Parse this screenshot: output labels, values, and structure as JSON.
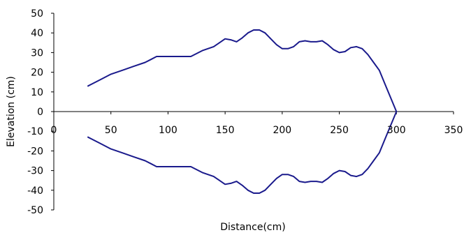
{
  "chart_data": {
    "type": "line",
    "title": "",
    "xlabel": "Distance(cm)",
    "ylabel": "Elevation (cm)",
    "xlim": [
      0,
      350
    ],
    "ylim": [
      -50,
      50
    ],
    "xticks": [
      0,
      50,
      100,
      150,
      200,
      250,
      300,
      350
    ],
    "yticks": [
      50,
      40,
      30,
      20,
      10,
      0,
      -10,
      -20,
      -30,
      -40,
      -50
    ],
    "grid": false,
    "legend": "none",
    "series": [
      {
        "color": "#1a1a8c",
        "x": [
          30,
          40,
          50,
          60,
          70,
          80,
          85,
          90,
          100,
          110,
          120,
          130,
          140,
          145,
          150,
          155,
          160,
          165,
          170,
          175,
          180,
          185,
          190,
          195,
          200,
          205,
          210,
          215,
          220,
          225,
          230,
          235,
          240,
          245,
          250,
          255,
          260,
          265,
          270,
          275,
          280,
          285,
          290,
          295,
          300
        ],
        "y": [
          13,
          16,
          19,
          21,
          23,
          25,
          26.5,
          28,
          28,
          28,
          28,
          31,
          33,
          35,
          37,
          36.5,
          35.5,
          37.5,
          40,
          41.5,
          41.5,
          40,
          37,
          34,
          32,
          32,
          33,
          35.5,
          36,
          35.5,
          35.5,
          36,
          34,
          31.5,
          30,
          30.5,
          32.5,
          33,
          32,
          29,
          25,
          21,
          14,
          7,
          0
        ]
      },
      {
        "color": "#1a1a8c",
        "x": [
          30,
          40,
          50,
          60,
          70,
          80,
          85,
          90,
          100,
          110,
          120,
          130,
          140,
          145,
          150,
          155,
          160,
          165,
          170,
          175,
          180,
          185,
          190,
          195,
          200,
          205,
          210,
          215,
          220,
          225,
          230,
          235,
          240,
          245,
          250,
          255,
          260,
          265,
          270,
          275,
          280,
          285,
          290,
          295,
          300
        ],
        "y": [
          -13,
          -16,
          -19,
          -21,
          -23,
          -25,
          -26.5,
          -28,
          -28,
          -28,
          -28,
          -31,
          -33,
          -35,
          -37,
          -36.5,
          -35.5,
          -37.5,
          -40,
          -41.5,
          -41.5,
          -40,
          -37,
          -34,
          -32,
          -32,
          -33,
          -35.5,
          -36,
          -35.5,
          -35.5,
          -36,
          -34,
          -31.5,
          -30,
          -30.5,
          -32.5,
          -33,
          -32,
          -29,
          -25,
          -21,
          -14,
          -7,
          0
        ]
      }
    ]
  }
}
